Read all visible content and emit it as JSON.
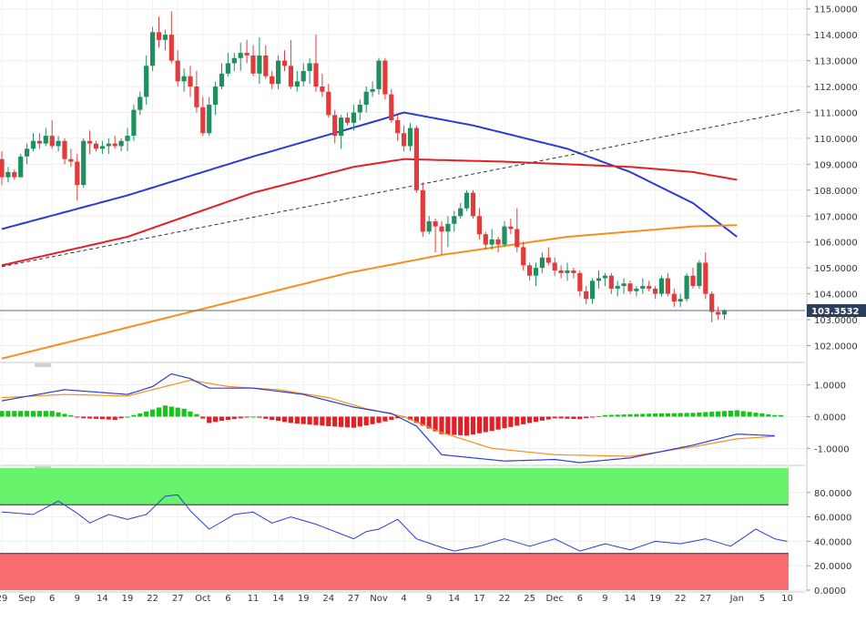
{
  "chart_data": {
    "type": "candlestick",
    "price_axis": {
      "ylim": [
        101.35,
        115.2
      ],
      "ticks": [
        "115.0000",
        "114.0000",
        "113.0000",
        "112.0000",
        "111.0000",
        "110.0000",
        "109.0000",
        "108.0000",
        "107.0000",
        "106.0000",
        "105.0000",
        "104.0000",
        "103.0000",
        "102.0000"
      ],
      "tick_values": [
        115,
        114,
        113,
        112,
        111,
        110,
        109,
        108,
        107,
        106,
        105,
        104,
        103,
        102
      ],
      "last_price_label": "103.3532",
      "last_price": 103.3532
    },
    "x_axis": {
      "ticks": [
        "29",
        "Sep",
        "6",
        "9",
        "14",
        "19",
        "22",
        "27",
        "Oct",
        "6",
        "11",
        "14",
        "19",
        "24",
        "27",
        "Nov",
        "4",
        "9",
        "14",
        "17",
        "22",
        "25",
        "Dec",
        "6",
        "9",
        "14",
        "19",
        "22",
        "27",
        "Jan",
        "5",
        "10"
      ],
      "tick_index": [
        0,
        4,
        8,
        12,
        16,
        20,
        24,
        28,
        32,
        36,
        40,
        44,
        48,
        52,
        56,
        60,
        64,
        68,
        72,
        76,
        80,
        84,
        88,
        92,
        96,
        100,
        104,
        108,
        112,
        117,
        121,
        125
      ]
    },
    "candles": [
      [
        109.2,
        109.5,
        108.2,
        108.5
      ],
      [
        108.5,
        108.9,
        108.3,
        108.7
      ],
      [
        108.7,
        108.8,
        108.4,
        108.5
      ],
      [
        108.5,
        109.4,
        108.5,
        109.3
      ],
      [
        109.3,
        109.8,
        109.0,
        109.6
      ],
      [
        109.6,
        110.2,
        109.5,
        109.9
      ],
      [
        109.9,
        110.2,
        109.6,
        109.8
      ],
      [
        109.8,
        110.4,
        109.7,
        110.1
      ],
      [
        110.1,
        110.7,
        109.6,
        109.7
      ],
      [
        109.7,
        110.1,
        109.5,
        109.9
      ],
      [
        109.9,
        110.0,
        109.0,
        109.2
      ],
      [
        109.2,
        109.6,
        108.9,
        109.1
      ],
      [
        109.1,
        109.4,
        107.6,
        108.2
      ],
      [
        108.2,
        110.0,
        108.1,
        109.9
      ],
      [
        109.9,
        110.3,
        109.4,
        109.8
      ],
      [
        109.8,
        109.9,
        109.5,
        109.6
      ],
      [
        109.6,
        109.9,
        109.4,
        109.7
      ],
      [
        109.7,
        110.0,
        109.4,
        109.8
      ],
      [
        109.8,
        110.1,
        109.6,
        109.7
      ],
      [
        109.7,
        110.0,
        109.5,
        109.9
      ],
      [
        109.9,
        110.4,
        109.5,
        110.1
      ],
      [
        110.1,
        111.3,
        109.9,
        111.1
      ],
      [
        111.1,
        111.8,
        110.9,
        111.6
      ],
      [
        111.6,
        113.2,
        111.3,
        112.8
      ],
      [
        112.8,
        114.3,
        112.6,
        114.1
      ],
      [
        114.1,
        114.7,
        113.5,
        113.8
      ],
      [
        113.8,
        114.2,
        113.4,
        114.0
      ],
      [
        114.0,
        114.9,
        112.9,
        113.0
      ],
      [
        113.0,
        113.4,
        112.0,
        112.2
      ],
      [
        112.2,
        112.7,
        111.8,
        112.4
      ],
      [
        112.4,
        112.8,
        111.6,
        112.0
      ],
      [
        112.0,
        112.6,
        111.0,
        111.2
      ],
      [
        111.2,
        111.6,
        110.1,
        110.2
      ],
      [
        110.2,
        111.6,
        110.1,
        111.3
      ],
      [
        111.3,
        112.2,
        110.9,
        112.0
      ],
      [
        112.0,
        112.9,
        111.9,
        112.5
      ],
      [
        112.5,
        113.3,
        112.4,
        112.9
      ],
      [
        112.9,
        113.3,
        112.6,
        113.1
      ],
      [
        113.1,
        113.7,
        112.6,
        113.3
      ],
      [
        113.3,
        113.8,
        112.9,
        113.2
      ],
      [
        113.2,
        113.6,
        112.4,
        112.5
      ],
      [
        112.5,
        113.9,
        112.1,
        113.2
      ],
      [
        113.2,
        113.6,
        112.3,
        112.4
      ],
      [
        112.4,
        112.6,
        111.9,
        112.1
      ],
      [
        112.1,
        113.2,
        111.9,
        113.0
      ],
      [
        113.0,
        113.4,
        112.6,
        112.8
      ],
      [
        112.8,
        113.8,
        111.9,
        112.0
      ],
      [
        112.0,
        112.6,
        111.8,
        112.2
      ],
      [
        112.2,
        112.9,
        112.0,
        112.6
      ],
      [
        112.6,
        113.1,
        112.1,
        112.9
      ],
      [
        112.9,
        114.0,
        111.8,
        112.0
      ],
      [
        112.0,
        112.5,
        111.6,
        111.8
      ],
      [
        111.8,
        112.1,
        110.8,
        110.9
      ],
      [
        110.9,
        111.1,
        109.8,
        110.1
      ],
      [
        110.1,
        110.9,
        109.6,
        110.8
      ],
      [
        110.8,
        111.0,
        110.5,
        110.6
      ],
      [
        110.6,
        111.3,
        110.3,
        111.0
      ],
      [
        111.0,
        111.5,
        110.7,
        111.3
      ],
      [
        111.3,
        112.0,
        111.0,
        111.8
      ],
      [
        111.8,
        112.2,
        111.6,
        111.9
      ],
      [
        111.9,
        113.1,
        111.7,
        113.0
      ],
      [
        113.0,
        113.1,
        111.5,
        111.7
      ],
      [
        111.7,
        111.9,
        110.6,
        110.7
      ],
      [
        110.7,
        110.9,
        109.9,
        110.2
      ],
      [
        110.2,
        110.5,
        109.5,
        109.7
      ],
      [
        109.7,
        110.6,
        109.5,
        110.4
      ],
      [
        110.4,
        110.5,
        107.9,
        108.0
      ],
      [
        108.0,
        108.3,
        106.2,
        106.4
      ],
      [
        106.4,
        107.0,
        106.3,
        106.8
      ],
      [
        106.8,
        106.9,
        105.6,
        106.6
      ],
      [
        106.6,
        106.8,
        105.5,
        106.4
      ],
      [
        106.4,
        107.0,
        105.8,
        106.7
      ],
      [
        106.7,
        107.2,
        106.4,
        107.0
      ],
      [
        107.0,
        107.5,
        106.9,
        107.3
      ],
      [
        107.3,
        108.0,
        107.2,
        107.9
      ],
      [
        107.9,
        108.0,
        106.9,
        107.0
      ],
      [
        107.0,
        107.3,
        106.1,
        106.3
      ],
      [
        106.3,
        106.4,
        105.7,
        105.9
      ],
      [
        105.9,
        106.5,
        105.7,
        106.1
      ],
      [
        106.1,
        106.2,
        105.6,
        105.9
      ],
      [
        105.9,
        106.8,
        105.8,
        106.6
      ],
      [
        106.6,
        106.9,
        106.3,
        106.5
      ],
      [
        106.5,
        107.3,
        105.6,
        105.8
      ],
      [
        105.8,
        106.0,
        104.9,
        105.1
      ],
      [
        105.1,
        105.2,
        104.5,
        104.7
      ],
      [
        104.7,
        105.2,
        104.3,
        105.0
      ],
      [
        105.0,
        105.6,
        104.8,
        105.4
      ],
      [
        105.4,
        105.8,
        105.1,
        105.2
      ],
      [
        105.2,
        105.4,
        104.7,
        104.9
      ],
      [
        104.9,
        105.1,
        104.6,
        104.8
      ],
      [
        104.8,
        105.2,
        104.5,
        104.9
      ],
      [
        104.9,
        105.0,
        104.6,
        104.8
      ],
      [
        104.8,
        104.9,
        103.9,
        104.1
      ],
      [
        104.1,
        104.3,
        103.6,
        103.8
      ],
      [
        103.8,
        104.6,
        103.6,
        104.5
      ],
      [
        104.5,
        104.9,
        104.2,
        104.6
      ],
      [
        104.6,
        104.8,
        104.3,
        104.7
      ],
      [
        104.7,
        104.8,
        104.0,
        104.2
      ],
      [
        104.2,
        104.5,
        103.9,
        104.3
      ],
      [
        104.3,
        104.6,
        104.0,
        104.4
      ],
      [
        104.4,
        104.5,
        104.0,
        104.1
      ],
      [
        104.1,
        104.3,
        103.9,
        104.2
      ],
      [
        104.2,
        104.6,
        104.0,
        104.3
      ],
      [
        104.3,
        104.5,
        104.1,
        104.2
      ],
      [
        104.2,
        104.3,
        103.8,
        104.0
      ],
      [
        104.0,
        104.7,
        103.9,
        104.6
      ],
      [
        104.6,
        104.8,
        103.9,
        104.0
      ],
      [
        104.0,
        104.2,
        103.5,
        103.7
      ],
      [
        103.7,
        104.0,
        103.5,
        103.8
      ],
      [
        103.8,
        104.8,
        103.7,
        104.7
      ],
      [
        104.7,
        105.0,
        104.2,
        104.3
      ],
      [
        104.3,
        105.3,
        104.2,
        105.2
      ],
      [
        105.2,
        105.6,
        103.8,
        104.0
      ],
      [
        104.0,
        104.1,
        102.9,
        103.3
      ],
      [
        103.3,
        103.5,
        103.0,
        103.2
      ],
      [
        103.2,
        103.4,
        103.0,
        103.35
      ]
    ],
    "moving_averages": [
      {
        "color": "#2d3bd6",
        "values": [
          [
            0,
            106.5
          ],
          [
            20,
            107.8
          ],
          [
            40,
            109.3
          ],
          [
            60,
            110.7
          ],
          [
            64,
            111.0
          ],
          [
            75,
            110.5
          ],
          [
            90,
            109.6
          ],
          [
            100,
            108.7
          ],
          [
            110,
            107.5
          ],
          [
            117,
            106.2
          ]
        ]
      },
      {
        "color": "#e21f27",
        "values": [
          [
            0,
            105.1
          ],
          [
            20,
            106.2
          ],
          [
            40,
            107.9
          ],
          [
            56,
            108.9
          ],
          [
            64,
            109.2
          ],
          [
            80,
            109.1
          ],
          [
            100,
            108.9
          ],
          [
            110,
            108.7
          ],
          [
            117,
            108.4
          ]
        ]
      },
      {
        "color": "#f5901e",
        "values": [
          [
            0,
            101.5
          ],
          [
            30,
            103.3
          ],
          [
            55,
            104.8
          ],
          [
            70,
            105.5
          ],
          [
            90,
            106.2
          ],
          [
            110,
            106.6
          ],
          [
            117,
            106.65
          ]
        ]
      }
    ],
    "trendline": {
      "from": [
        0,
        105.05
      ],
      "to": [
        127,
        111.1
      ],
      "style": "dashed"
    },
    "macd": {
      "ticks": [
        "1.0000",
        "0.0000",
        "-1.0000"
      ],
      "tick_values": [
        1.0,
        0.0,
        -1.0
      ],
      "ylim": [
        -1.45,
        1.45
      ],
      "line_colors": {
        "macd": "#2d3bd6",
        "signal": "#f5901e"
      },
      "histogram_colors": {
        "positive": "#17c41b",
        "negative": "#e21f27"
      },
      "macd_line": [
        [
          0,
          0.5
        ],
        [
          10,
          0.85
        ],
        [
          20,
          0.7
        ],
        [
          24,
          0.95
        ],
        [
          27,
          1.35
        ],
        [
          30,
          1.2
        ],
        [
          33,
          0.9
        ],
        [
          40,
          0.9
        ],
        [
          48,
          0.7
        ],
        [
          56,
          0.3
        ],
        [
          62,
          0.1
        ],
        [
          66,
          -0.3
        ],
        [
          70,
          -1.2
        ],
        [
          80,
          -1.4
        ],
        [
          88,
          -1.35
        ],
        [
          92,
          -1.45
        ],
        [
          100,
          -1.3
        ],
        [
          110,
          -0.9
        ],
        [
          117,
          -0.55
        ],
        [
          123,
          -0.6
        ]
      ],
      "signal_line": [
        [
          0,
          0.6
        ],
        [
          10,
          0.7
        ],
        [
          20,
          0.65
        ],
        [
          26,
          0.95
        ],
        [
          30,
          1.15
        ],
        [
          36,
          0.95
        ],
        [
          44,
          0.85
        ],
        [
          52,
          0.6
        ],
        [
          58,
          0.25
        ],
        [
          64,
          0.0
        ],
        [
          70,
          -0.5
        ],
        [
          78,
          -1.0
        ],
        [
          88,
          -1.2
        ],
        [
          100,
          -1.25
        ],
        [
          110,
          -0.95
        ],
        [
          117,
          -0.7
        ],
        [
          123,
          -0.62
        ]
      ],
      "histogram": [
        [
          0,
          0.18
        ],
        [
          8,
          0.18
        ],
        [
          13,
          -0.05
        ],
        [
          18,
          -0.1
        ],
        [
          22,
          0.1
        ],
        [
          26,
          0.35
        ],
        [
          29,
          0.25
        ],
        [
          31,
          0.08
        ],
        [
          33,
          -0.2
        ],
        [
          36,
          -0.1
        ],
        [
          40,
          0.0
        ],
        [
          46,
          -0.2
        ],
        [
          52,
          -0.3
        ],
        [
          56,
          -0.35
        ],
        [
          60,
          -0.2
        ],
        [
          64,
          0.0
        ],
        [
          66,
          -0.2
        ],
        [
          70,
          -0.55
        ],
        [
          74,
          -0.6
        ],
        [
          78,
          -0.45
        ],
        [
          84,
          -0.2
        ],
        [
          88,
          -0.05
        ],
        [
          92,
          -0.08
        ],
        [
          96,
          0.05
        ],
        [
          104,
          0.1
        ],
        [
          110,
          0.12
        ],
        [
          117,
          0.2
        ],
        [
          123,
          0.05
        ]
      ]
    },
    "rsi": {
      "ticks": [
        "80.0000",
        "60.0000",
        "40.0000",
        "20.0000",
        "0.0000"
      ],
      "tick_values": [
        80,
        60,
        40,
        20,
        0
      ],
      "ylim": [
        0,
        100
      ],
      "overbought": 70,
      "oversold": 30,
      "line_color": "#2d3bd6",
      "overbought_fill": "#67f36b",
      "oversold_fill": "#f96c6f",
      "values": [
        [
          0,
          64
        ],
        [
          5,
          62
        ],
        [
          9,
          73
        ],
        [
          12,
          63
        ],
        [
          14,
          55
        ],
        [
          17,
          62
        ],
        [
          20,
          58
        ],
        [
          23,
          62
        ],
        [
          26,
          77
        ],
        [
          28,
          78
        ],
        [
          30,
          65
        ],
        [
          33,
          50
        ],
        [
          37,
          62
        ],
        [
          40,
          64
        ],
        [
          43,
          55
        ],
        [
          46,
          60
        ],
        [
          50,
          54
        ],
        [
          54,
          46
        ],
        [
          56,
          42
        ],
        [
          58,
          48
        ],
        [
          60,
          50
        ],
        [
          63,
          58
        ],
        [
          66,
          42
        ],
        [
          70,
          35
        ],
        [
          72,
          32
        ],
        [
          76,
          36
        ],
        [
          80,
          42
        ],
        [
          84,
          36
        ],
        [
          88,
          42
        ],
        [
          92,
          32
        ],
        [
          96,
          38
        ],
        [
          100,
          33
        ],
        [
          104,
          40
        ],
        [
          108,
          38
        ],
        [
          112,
          42
        ],
        [
          116,
          36
        ],
        [
          120,
          50
        ],
        [
          123,
          42
        ],
        [
          125,
          40
        ]
      ]
    }
  }
}
